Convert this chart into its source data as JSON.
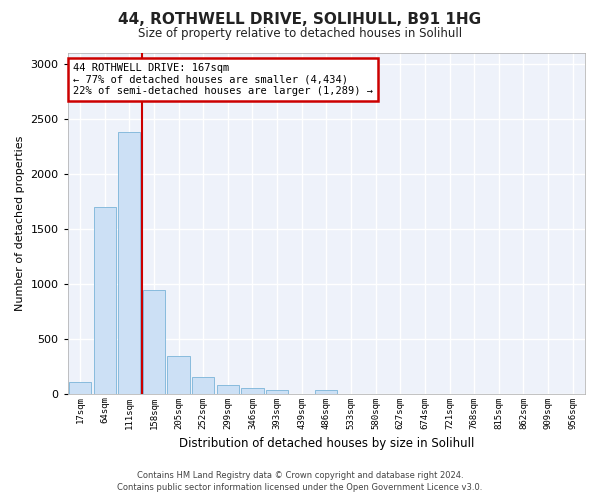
{
  "title": "44, ROTHWELL DRIVE, SOLIHULL, B91 1HG",
  "subtitle": "Size of property relative to detached houses in Solihull",
  "xlabel": "Distribution of detached houses by size in Solihull",
  "ylabel": "Number of detached properties",
  "bar_color": "#cce0f5",
  "bar_edge_color": "#7ab4d8",
  "background_color": "#eef2fa",
  "fig_background_color": "#ffffff",
  "grid_color": "#ffffff",
  "categories": [
    "17sqm",
    "64sqm",
    "111sqm",
    "158sqm",
    "205sqm",
    "252sqm",
    "299sqm",
    "346sqm",
    "393sqm",
    "439sqm",
    "486sqm",
    "533sqm",
    "580sqm",
    "627sqm",
    "674sqm",
    "721sqm",
    "768sqm",
    "815sqm",
    "862sqm",
    "909sqm",
    "956sqm"
  ],
  "values": [
    110,
    1700,
    2380,
    940,
    340,
    155,
    75,
    55,
    35,
    0,
    35,
    0,
    0,
    0,
    0,
    0,
    0,
    0,
    0,
    0,
    0
  ],
  "ylim": [
    0,
    3100
  ],
  "yticks": [
    0,
    500,
    1000,
    1500,
    2000,
    2500,
    3000
  ],
  "vline_x": 2.5,
  "annotation_title": "44 ROTHWELL DRIVE: 167sqm",
  "annotation_line1": "← 77% of detached houses are smaller (4,434)",
  "annotation_line2": "22% of semi-detached houses are larger (1,289) →",
  "annotation_box_color": "#ffffff",
  "annotation_border_color": "#cc0000",
  "vline_color": "#cc0000",
  "footnote1": "Contains HM Land Registry data © Crown copyright and database right 2024.",
  "footnote2": "Contains public sector information licensed under the Open Government Licence v3.0."
}
